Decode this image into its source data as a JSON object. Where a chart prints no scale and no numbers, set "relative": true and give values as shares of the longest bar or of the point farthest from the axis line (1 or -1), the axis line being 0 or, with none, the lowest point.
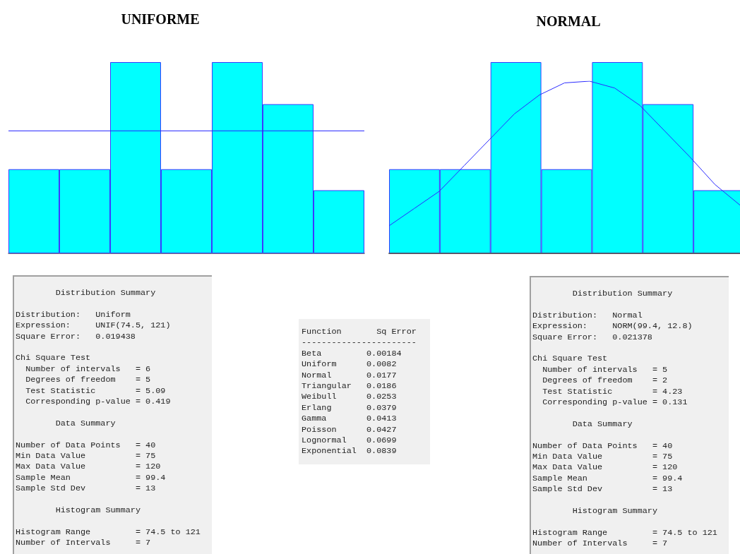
{
  "chart_data": [
    {
      "type": "bar",
      "title": "UNIFORME",
      "relative": true,
      "categories": [
        null,
        null,
        null,
        null,
        null,
        null,
        null
      ],
      "series": [
        {
          "color": "#00ffff",
          "values": [
            0.44,
            0.44,
            1,
            0.44,
            1,
            0.78,
            0.33
          ]
        }
      ],
      "ref_lines": [
        {
          "axis": "y",
          "value": 0.64,
          "color": "#2a2aff"
        }
      ]
    },
    {
      "type": "bar",
      "title": "NORMAL",
      "relative": true,
      "categories": [
        null,
        null,
        null,
        null,
        null,
        null,
        null
      ],
      "series": [
        {
          "color": "#00ffff",
          "values": [
            0.44,
            0.44,
            1,
            0.44,
            1,
            0.78,
            0.33
          ]
        }
      ]
    },
    {
      "type": "line",
      "relative": true,
      "categories": [
        null,
        null,
        null,
        null,
        null,
        null,
        null,
        null,
        null,
        null,
        null,
        null,
        null,
        null,
        null
      ],
      "series": [
        {
          "color": "#2a2aff",
          "values": [
            0.16,
            0.26,
            0.36,
            0.51,
            0.66,
            0.81,
            0.92,
            0.99,
            1,
            0.96,
            0.86,
            0.71,
            0.56,
            0.4,
            0.28
          ]
        }
      ]
    },
    {
      "type": "other",
      "title": "Distribution Summary",
      "annotations": [
        "Distribution:   Uniform\nExpression:     UNIF(74.5, 121)\nSquare Error:   0.019438",
        "Chi Square Test\n  Number of intervals   = 6\n  Degrees of freedom    = 5\n  Test Statistic        = 5.09\n  Corresponding p-value = 0.419",
        "        Data Summary",
        "Number of Data Points   = 40\nMin Data Value          = 75\nMax Data Value          = 120\nSample Mean             = 99.4\nSample Std Dev          = 13",
        "        Histogram Summary",
        "Histogram Range         = 74.5 to 121\nNumber of Intervals     = 7"
      ]
    },
    {
      "type": "other",
      "annotations": [
        "Function       Sq Error\n-----------------------\nBeta         0.00184\nUniform      0.0082\nNormal       0.0177\nTriangular   0.0186\nWeibull      0.0253\nErlang       0.0379\nGamma        0.0413\nPoisson      0.0427\nLognormal    0.0699\nExponential  0.0839"
      ]
    },
    {
      "type": "other",
      "title": "Distribution Summary",
      "annotations": [
        "Distribution:   Normal\nExpression:     NORM(99.4, 12.8)\nSquare Error:   0.021378",
        "Chi Square Test\n  Number of intervals   = 5\n  Degrees of freedom    = 2\n  Test Statistic        = 4.23\n  Corresponding p-value = 0.131",
        "        Data Summary",
        "Number of Data Points   = 40\nMin Data Value          = 75\nMax Data Value          = 120\nSample Mean             = 99.4\nSample Std Dev          = 13",
        "        Histogram Summary",
        "Histogram Range         = 74.5 to 121\nNumber of Intervals     = 7"
      ]
    }
  ]
}
